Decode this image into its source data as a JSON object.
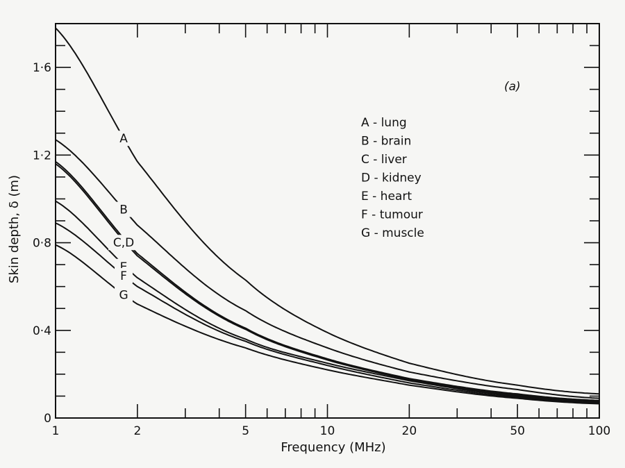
{
  "chart_data": {
    "type": "line",
    "panel_label": "(a)",
    "xlabel": "Frequency (MHz)",
    "ylabel": "Skin depth, δ (m)",
    "xscale": "log",
    "xlim": [
      1,
      100
    ],
    "ylim": [
      0,
      1.8
    ],
    "x_ticks": [
      1,
      2,
      5,
      10,
      20,
      50,
      100
    ],
    "x_tick_labels": [
      "1",
      "2",
      "5",
      "10",
      "20",
      "50",
      "100"
    ],
    "y_ticks": [
      0,
      0.4,
      0.8,
      1.2,
      1.6
    ],
    "y_tick_labels": [
      "0",
      "0·4",
      "0·8",
      "1·2",
      "1·6"
    ],
    "legend_placement": "upper-right",
    "legend": [
      "A - lung",
      "B - brain",
      "C - liver",
      "D - kidney",
      "E - heart",
      "F - tumour",
      "G - muscle"
    ],
    "x": [
      1,
      2,
      5,
      10,
      20,
      50,
      100
    ],
    "series": [
      {
        "name": "A",
        "label": "A",
        "values": [
          1.78,
          1.17,
          0.63,
          0.39,
          0.25,
          0.15,
          0.11
        ]
      },
      {
        "name": "B",
        "label": "B",
        "values": [
          1.27,
          0.88,
          0.49,
          0.32,
          0.21,
          0.13,
          0.09
        ]
      },
      {
        "name": "C",
        "label": "C,D",
        "values": [
          1.17,
          0.75,
          0.41,
          0.27,
          0.18,
          0.11,
          0.08
        ]
      },
      {
        "name": "D",
        "label": "",
        "values": [
          1.16,
          0.74,
          0.405,
          0.265,
          0.175,
          0.105,
          0.078
        ]
      },
      {
        "name": "E",
        "label": "E",
        "values": [
          0.99,
          0.64,
          0.36,
          0.25,
          0.17,
          0.1,
          0.075
        ]
      },
      {
        "name": "F",
        "label": "F",
        "values": [
          0.89,
          0.6,
          0.35,
          0.24,
          0.16,
          0.095,
          0.07
        ]
      },
      {
        "name": "G",
        "label": "G",
        "values": [
          0.79,
          0.52,
          0.32,
          0.22,
          0.15,
          0.09,
          0.065
        ]
      }
    ]
  }
}
